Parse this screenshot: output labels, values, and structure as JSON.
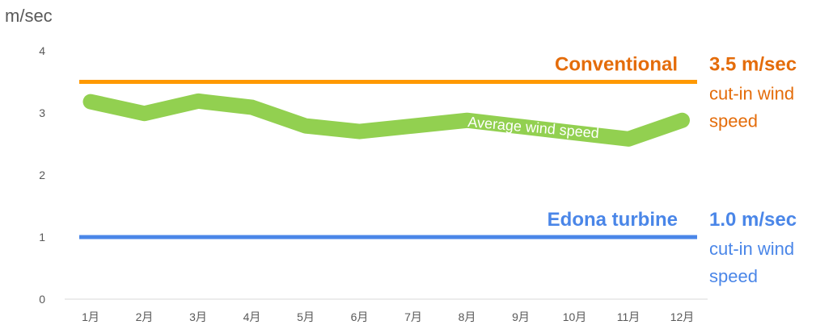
{
  "chart_data": {
    "type": "line",
    "ylabel": "m/sec",
    "ylim": [
      0,
      4
    ],
    "yticks": [
      "0",
      "1",
      "2",
      "3",
      "4"
    ],
    "categories": [
      "1月",
      "2月",
      "3月",
      "4月",
      "5月",
      "6月",
      "7月",
      "8月",
      "9月",
      "10月",
      "11月",
      "12月"
    ],
    "series": [
      {
        "name": "Average wind speed",
        "color": "#92D050",
        "values": [
          3.18,
          2.99,
          3.19,
          3.09,
          2.79,
          2.7,
          2.79,
          2.88,
          2.78,
          2.68,
          2.58,
          2.88
        ]
      }
    ],
    "reference_lines": [
      {
        "name": "Conventional",
        "value": 3.5,
        "color": "#FF9900",
        "text_color": "#E46C0A",
        "value_label": "3.5 m/sec",
        "note": [
          "cut-in wind",
          "speed"
        ]
      },
      {
        "name": "Edona turbine",
        "value": 1.0,
        "color": "#4A86E8",
        "text_color": "#4A86E8",
        "value_label": "1.0 m/sec",
        "note": [
          "cut-in wind",
          "speed"
        ]
      }
    ],
    "grid": false
  }
}
